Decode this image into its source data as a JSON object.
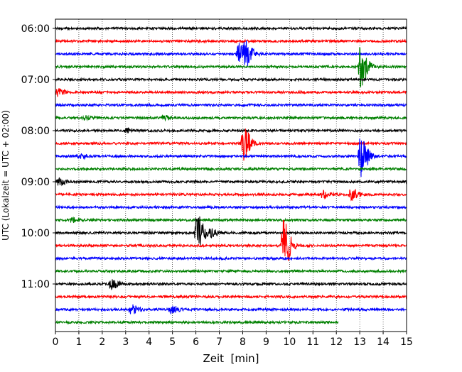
{
  "chart_data": {
    "type": "line",
    "title": "",
    "xlabel": "Zeit  [min]",
    "ylabel": "UTC (Lokalzeit = UTC + 02:00)",
    "xlim": [
      0,
      15
    ],
    "xticks": [
      "0",
      "1",
      "2",
      "3",
      "4",
      "5",
      "6",
      "7",
      "8",
      "9",
      "10",
      "11",
      "12",
      "13",
      "14",
      "15"
    ],
    "yticks": [
      "06:00",
      "07:00",
      "08:00",
      "09:00",
      "10:00",
      "11:00"
    ],
    "grid": "vertical dotted at each minute",
    "trace_interval_minutes": 15,
    "first_trace_time": "06:00",
    "colors": [
      "#000000",
      "#ff0000",
      "#0000ff",
      "#008000"
    ],
    "traces": [
      {
        "start": "06:00",
        "color": "#000000",
        "end_min": 15,
        "events": []
      },
      {
        "start": "06:15",
        "color": "#ff0000",
        "end_min": 15,
        "events": []
      },
      {
        "start": "06:30",
        "color": "#0000ff",
        "end_min": 15,
        "events": [
          {
            "t": 7.8,
            "amp": 1.6
          },
          {
            "t": 8.1,
            "amp": 1.6
          }
        ]
      },
      {
        "start": "06:45",
        "color": "#008000",
        "end_min": 15,
        "events": [
          {
            "t": 13.0,
            "amp": 3.2
          }
        ]
      },
      {
        "start": "07:00",
        "color": "#000000",
        "end_min": 15,
        "events": []
      },
      {
        "start": "07:15",
        "color": "#ff0000",
        "end_min": 15,
        "events": [
          {
            "t": 0.0,
            "amp": 0.6
          }
        ]
      },
      {
        "start": "07:30",
        "color": "#0000ff",
        "end_min": 15,
        "events": []
      },
      {
        "start": "07:45",
        "color": "#008000",
        "end_min": 15,
        "events": [
          {
            "t": 1.2,
            "amp": 0.3
          },
          {
            "t": 4.6,
            "amp": 0.3
          }
        ]
      },
      {
        "start": "08:00",
        "color": "#000000",
        "end_min": 15,
        "events": [
          {
            "t": 3.0,
            "amp": 0.3
          }
        ]
      },
      {
        "start": "08:15",
        "color": "#ff0000",
        "end_min": 15,
        "events": [
          {
            "t": 8.0,
            "amp": 2.6
          }
        ]
      },
      {
        "start": "08:30",
        "color": "#0000ff",
        "end_min": 15,
        "events": [
          {
            "t": 13.0,
            "amp": 3.4
          },
          {
            "t": 1.0,
            "amp": 0.3
          }
        ]
      },
      {
        "start": "08:45",
        "color": "#008000",
        "end_min": 15,
        "events": []
      },
      {
        "start": "09:00",
        "color": "#000000",
        "end_min": 15,
        "events": [
          {
            "t": 0.1,
            "amp": 0.5
          }
        ]
      },
      {
        "start": "09:15",
        "color": "#ff0000",
        "end_min": 15,
        "events": [
          {
            "t": 11.4,
            "amp": 0.6
          },
          {
            "t": 12.6,
            "amp": 0.9
          }
        ]
      },
      {
        "start": "09:30",
        "color": "#0000ff",
        "end_min": 15,
        "events": []
      },
      {
        "start": "09:45",
        "color": "#008000",
        "end_min": 15,
        "events": [
          {
            "t": 0.6,
            "amp": 0.4
          }
        ]
      },
      {
        "start": "10:00",
        "color": "#000000",
        "end_min": 15,
        "events": [
          {
            "t": 6.0,
            "amp": 3.2
          },
          {
            "t": 6.6,
            "amp": 0.6
          }
        ]
      },
      {
        "start": "10:15",
        "color": "#ff0000",
        "end_min": 15,
        "events": [
          {
            "t": 9.7,
            "amp": 4.0
          }
        ]
      },
      {
        "start": "10:30",
        "color": "#0000ff",
        "end_min": 15,
        "events": []
      },
      {
        "start": "10:45",
        "color": "#008000",
        "end_min": 15,
        "events": []
      },
      {
        "start": "11:00",
        "color": "#000000",
        "end_min": 15,
        "events": [
          {
            "t": 2.35,
            "amp": 0.8
          }
        ]
      },
      {
        "start": "11:15",
        "color": "#ff0000",
        "end_min": 15,
        "events": []
      },
      {
        "start": "11:30",
        "color": "#0000ff",
        "end_min": 15,
        "events": [
          {
            "t": 3.2,
            "amp": 0.7
          },
          {
            "t": 4.9,
            "amp": 0.6
          }
        ]
      },
      {
        "start": "11:45",
        "color": "#008000",
        "end_min": 12.1,
        "events": []
      }
    ]
  }
}
